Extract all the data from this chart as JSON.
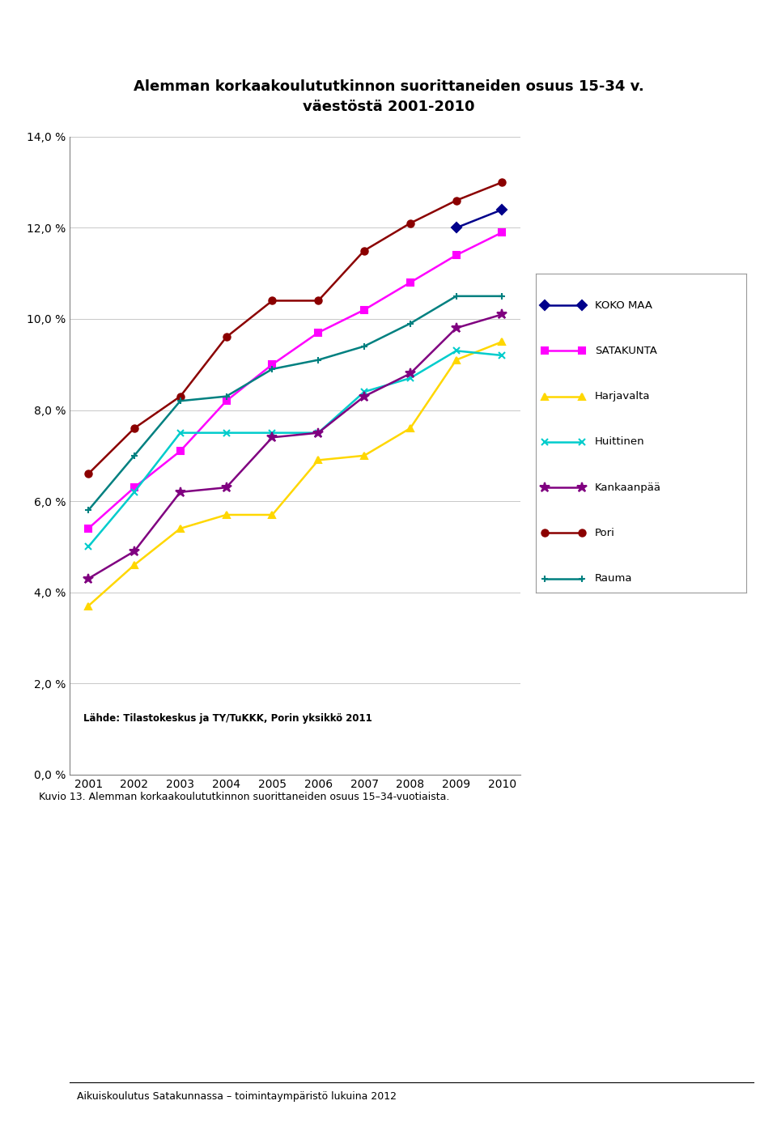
{
  "title_line1": "Alemman korkaakoulututkinnon suorittaneiden osuus 15-34 v.",
  "title_line2": "väestöstä 2001-2010",
  "years": [
    2001,
    2002,
    2003,
    2004,
    2005,
    2006,
    2007,
    2008,
    2009,
    2010
  ],
  "series": {
    "KOKO MAA": [
      null,
      null,
      null,
      null,
      null,
      null,
      null,
      null,
      12.0,
      12.4
    ],
    "SATAKUNTA": [
      5.4,
      6.3,
      7.1,
      8.2,
      9.0,
      9.7,
      10.2,
      10.8,
      11.4,
      11.9
    ],
    "Harjavalta": [
      3.7,
      4.6,
      5.4,
      5.7,
      5.7,
      6.9,
      7.0,
      7.6,
      9.1,
      9.5
    ],
    "Huittinen": [
      5.0,
      6.2,
      7.5,
      7.5,
      7.5,
      7.5,
      8.4,
      8.7,
      9.3,
      9.2
    ],
    "Kankaanpää": [
      4.3,
      4.9,
      6.2,
      6.3,
      7.4,
      7.5,
      8.3,
      8.8,
      9.8,
      10.1
    ],
    "Pori": [
      6.6,
      7.6,
      8.3,
      9.6,
      10.4,
      10.4,
      11.5,
      12.1,
      12.6,
      13.0
    ],
    "Rauma": [
      5.8,
      7.0,
      8.2,
      8.3,
      8.9,
      9.1,
      9.4,
      9.9,
      10.5,
      10.5
    ]
  },
  "colors": {
    "KOKO MAA": "#00008B",
    "SATAKUNTA": "#FF00FF",
    "Harjavalta": "#FFD700",
    "Huittinen": "#00CCCC",
    "Kankaanpää": "#800080",
    "Pori": "#8B0000",
    "Rauma": "#008080"
  },
  "markers": {
    "KOKO MAA": "D",
    "SATAKUNTA": "s",
    "Harjavalta": "^",
    "Huittinen": "x",
    "Kankaanpää": "*",
    "Pori": "o",
    "Rauma": "+"
  },
  "ylim": [
    0,
    14
  ],
  "yticks": [
    0,
    2,
    4,
    6,
    8,
    10,
    12,
    14
  ],
  "ytick_labels": [
    "0,0 %",
    "2,0 %",
    "4,0 %",
    "6,0 %",
    "8,0 %",
    "10,0 %",
    "12,0 %",
    "14,0 %"
  ],
  "source_text": "Lähde: Tilastokeskus ja TY/TuKKK, Porin yksikkö 2011",
  "caption": "Kuvio 13. Alemman korkaakoulututkinnon suorittaneiden osuus 15–34-vuotiaista.",
  "footer": "Aikuiskoulutus Satakunnassa – toimintaympäristö lukuina 2012",
  "bg_lavender": "#B8BEE0",
  "bg_plot": "#FFFFFF",
  "bg_page": "#FFFFFF"
}
